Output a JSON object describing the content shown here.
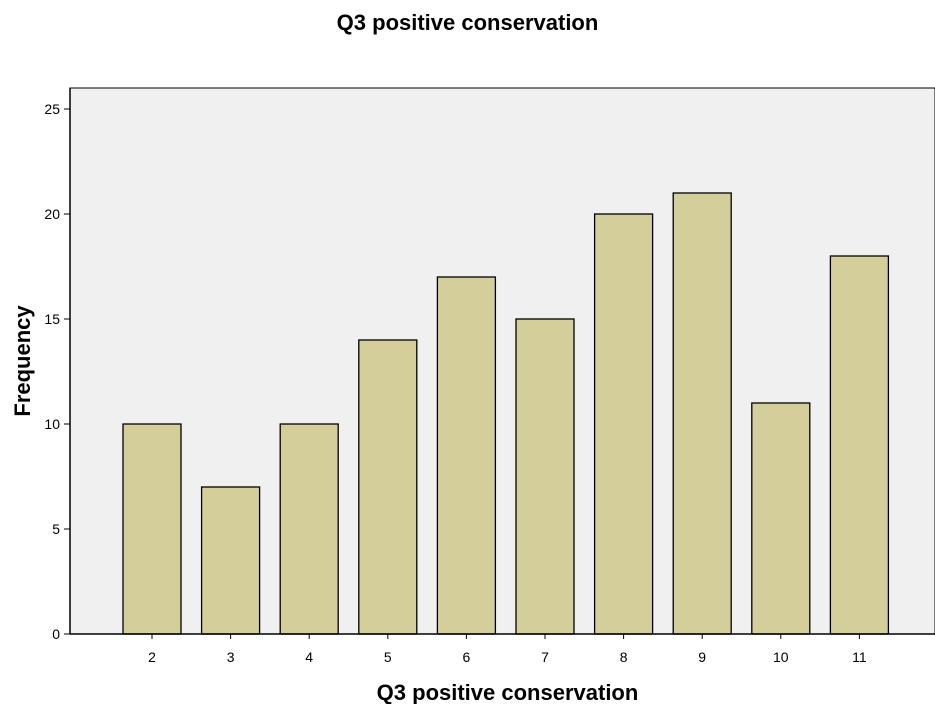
{
  "chart_data": {
    "type": "bar",
    "title": "Q3 positive conservation",
    "xlabel": "Q3 positive conservation",
    "ylabel": "Frequency",
    "categories": [
      "2",
      "3",
      "4",
      "5",
      "6",
      "7",
      "8",
      "9",
      "10",
      "11"
    ],
    "values": [
      10,
      7,
      10,
      14,
      17,
      15,
      20,
      21,
      11,
      18
    ],
    "ylim": [
      0,
      26
    ],
    "yticks": [
      0,
      5,
      10,
      15,
      20,
      25
    ],
    "grid": false,
    "legend": "none",
    "colors": {
      "bar_fill": "#d4cf9a",
      "bar_stroke": "#000000",
      "plot_background": "#f0f0f0",
      "axis": "#000000"
    }
  }
}
